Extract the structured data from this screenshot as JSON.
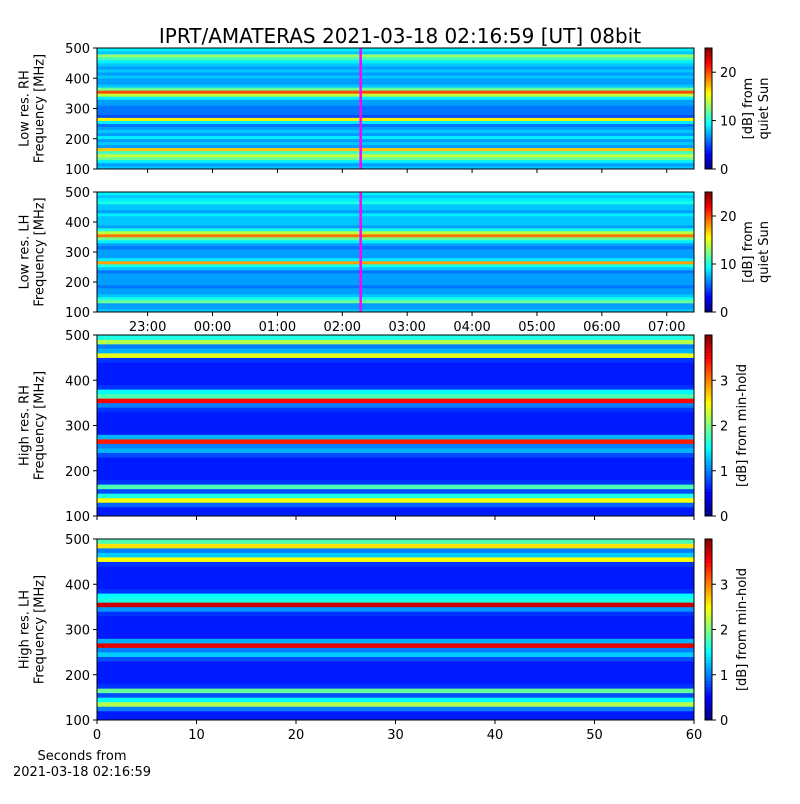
{
  "chart_data": [
    {
      "type": "heatmap",
      "title": "IPRT/AMATERAS 2021-03-18 02:16:59 [UT]   08bit",
      "ylabel": [
        "Low res. RH",
        "Frequency [MHz]"
      ],
      "clabel": [
        "[dB] from",
        "quiet Sun"
      ],
      "colormap": "jet",
      "clim": [
        0,
        25
      ],
      "cticks": [
        0,
        10,
        20
      ],
      "xlim": [
        22.22,
        31.42
      ],
      "xticks": [
        23,
        24,
        25,
        26,
        27,
        28,
        29,
        30,
        31
      ],
      "xticklabels": false,
      "ylim": [
        100,
        500
      ],
      "yticks": [
        100,
        200,
        300,
        400,
        500
      ],
      "marker": {
        "x": 26.283,
        "color": "#ff00ff"
      },
      "y_bins": [
        100,
        110,
        120,
        130,
        140,
        150,
        160,
        170,
        180,
        190,
        200,
        210,
        220,
        230,
        240,
        250,
        260,
        270,
        280,
        290,
        300,
        310,
        320,
        330,
        340,
        350,
        360,
        370,
        380,
        390,
        400,
        410,
        420,
        430,
        440,
        450,
        460,
        470,
        480,
        490,
        500
      ],
      "z": [
        8,
        7,
        9,
        12,
        14,
        11,
        17,
        7,
        8,
        7,
        9,
        7,
        8,
        7,
        6,
        9,
        16,
        5,
        6,
        6,
        6,
        7,
        7,
        9,
        14,
        20,
        12,
        8,
        7,
        7,
        8,
        7,
        8,
        7,
        8,
        9,
        11,
        13,
        8,
        9
      ]
    },
    {
      "type": "heatmap",
      "ylabel": [
        "Low res. LH",
        "Frequency [MHz]"
      ],
      "clabel": [
        "[dB] from",
        "quiet Sun"
      ],
      "colormap": "jet",
      "clim": [
        0,
        25
      ],
      "cticks": [
        0,
        10,
        20
      ],
      "xlim": [
        22.22,
        31.42
      ],
      "xticks": [
        {
          "value": 23,
          "label": "23:00"
        },
        {
          "value": 24,
          "label": "00:00"
        },
        {
          "value": 25,
          "label": "01:00"
        },
        {
          "value": 26,
          "label": "02:00"
        },
        {
          "value": 27,
          "label": "03:00"
        },
        {
          "value": 28,
          "label": "04:00"
        },
        {
          "value": 29,
          "label": "05:00"
        },
        {
          "value": 30,
          "label": "06:00"
        },
        {
          "value": 31,
          "label": "07:00"
        }
      ],
      "ylim": [
        100,
        500
      ],
      "yticks": [
        100,
        200,
        300,
        400,
        500
      ],
      "marker": {
        "x": 26.283,
        "color": "#ff00ff"
      },
      "y_bins": [
        100,
        110,
        120,
        130,
        140,
        150,
        160,
        170,
        180,
        190,
        200,
        210,
        220,
        230,
        240,
        250,
        260,
        270,
        280,
        290,
        300,
        310,
        320,
        330,
        340,
        350,
        360,
        370,
        380,
        390,
        400,
        410,
        420,
        430,
        440,
        450,
        460,
        470,
        480,
        490,
        500
      ],
      "z": [
        8,
        7,
        7,
        12,
        10,
        8,
        7,
        7,
        6,
        7,
        7,
        7,
        7,
        6,
        8,
        10,
        18,
        9,
        7,
        7,
        7,
        6,
        7,
        9,
        12,
        19,
        14,
        10,
        7,
        8,
        8,
        8,
        9,
        7,
        8,
        8,
        10,
        9,
        8,
        9
      ]
    },
    {
      "type": "heatmap",
      "ylabel": [
        "High res. RH",
        "Frequency [MHz]"
      ],
      "clabel": [
        "[dB] from min-hold"
      ],
      "colormap": "jet",
      "clim": [
        0,
        4
      ],
      "cticks": [
        0,
        1,
        2,
        3
      ],
      "xlim": [
        0,
        60
      ],
      "xticks": [
        0,
        10,
        20,
        30,
        40,
        50,
        60
      ],
      "xticklabels": false,
      "ylim": [
        100,
        500
      ],
      "yticks": [
        100,
        200,
        300,
        400,
        500
      ],
      "y_bins": [
        100,
        110,
        120,
        130,
        140,
        150,
        160,
        170,
        180,
        190,
        200,
        210,
        220,
        230,
        240,
        250,
        260,
        270,
        280,
        290,
        300,
        310,
        320,
        330,
        340,
        350,
        360,
        370,
        380,
        390,
        400,
        410,
        420,
        430,
        440,
        450,
        460,
        470,
        480,
        490,
        500
      ],
      "z": [
        0.6,
        0.6,
        0.9,
        2.5,
        1.6,
        0.8,
        1.8,
        0.7,
        0.6,
        0.6,
        0.6,
        0.6,
        0.6,
        0.8,
        1.2,
        1.0,
        3.4,
        1.2,
        0.6,
        0.6,
        0.6,
        0.6,
        0.6,
        0.7,
        1.0,
        3.5,
        1.8,
        1.5,
        0.7,
        0.6,
        0.6,
        0.6,
        0.6,
        0.6,
        0.7,
        2.4,
        1.2,
        1.0,
        2.2,
        1.6
      ]
    },
    {
      "type": "heatmap",
      "ylabel": [
        "High res. LH",
        "Frequency [MHz]"
      ],
      "clabel": [
        "[dB] from min-hold"
      ],
      "xlabel": [
        "Seconds from",
        "2021-03-18 02:16:59"
      ],
      "colormap": "jet",
      "clim": [
        0,
        4
      ],
      "cticks": [
        0,
        1,
        2,
        3
      ],
      "xlim": [
        0,
        60
      ],
      "xticks": [
        0,
        10,
        20,
        30,
        40,
        50,
        60
      ],
      "ylim": [
        100,
        500
      ],
      "yticks": [
        100,
        200,
        300,
        400,
        500
      ],
      "y_bins": [
        100,
        110,
        120,
        130,
        140,
        150,
        160,
        170,
        180,
        190,
        200,
        210,
        220,
        230,
        240,
        250,
        260,
        270,
        280,
        290,
        300,
        310,
        320,
        330,
        340,
        350,
        360,
        370,
        380,
        390,
        400,
        410,
        420,
        430,
        440,
        450,
        460,
        470,
        480,
        490,
        500
      ],
      "z": [
        0.6,
        0.6,
        1.0,
        2.2,
        1.5,
        0.8,
        1.9,
        0.7,
        0.6,
        0.6,
        0.6,
        0.6,
        0.6,
        0.8,
        1.3,
        1.0,
        3.6,
        1.2,
        0.6,
        0.6,
        0.6,
        0.6,
        0.6,
        0.7,
        1.1,
        3.7,
        1.6,
        1.5,
        0.7,
        0.6,
        0.6,
        0.6,
        0.6,
        0.6,
        0.7,
        2.5,
        1.3,
        1.0,
        2.6,
        1.8
      ]
    }
  ]
}
